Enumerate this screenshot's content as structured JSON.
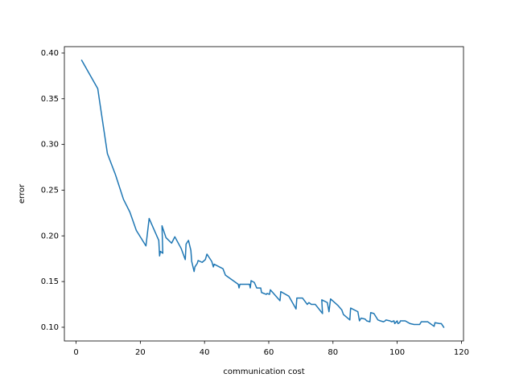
{
  "chart_data": {
    "type": "line",
    "x_label": "communication cost",
    "y_label": "error",
    "series": [
      {
        "color": "#1f77b4",
        "x": [
          1.75,
          6.75,
          7.5,
          9.75,
          12.25,
          14.75,
          16.75,
          18.75,
          21.75,
          22.75,
          25.75,
          26,
          26.25,
          27,
          26.75,
          28,
          29.75,
          30.75,
          32.75,
          34,
          34.25,
          35,
          35.75,
          36,
          36.75,
          37,
          37.75,
          38,
          39.25,
          40.25,
          40.75,
          42.25,
          42.75,
          43,
          45.75,
          46.5,
          50.5,
          50.75,
          51,
          54,
          54.25,
          54.5,
          55.5,
          56.25,
          57.5,
          57.75,
          59.25,
          59.5,
          60.25,
          60.5,
          61,
          63.5,
          63.75,
          66.25,
          68.5,
          68.75,
          70.5,
          72,
          72.5,
          73.25,
          74.5,
          76.75,
          76.5,
          78.25,
          78.75,
          79.25,
          81.5,
          82.75,
          83.25,
          85.25,
          85.5,
          87.75,
          88.25,
          88.75,
          90,
          90.5,
          91.5,
          91.75,
          92.75,
          94,
          94.75,
          95.75,
          96.25,
          96.5,
          97.75,
          98.25,
          99,
          99.25,
          100,
          100.25,
          100.75,
          101,
          102.5,
          104,
          105.25,
          107,
          107.5,
          109.5,
          111.5,
          111.75,
          113.25,
          113.75,
          114.5
        ],
        "values": [
          0.392,
          0.361,
          0.343,
          0.29,
          0.267,
          0.24,
          0.226,
          0.206,
          0.189,
          0.219,
          0.195,
          0.178,
          0.183,
          0.181,
          0.211,
          0.198,
          0.192,
          0.199,
          0.186,
          0.174,
          0.191,
          0.195,
          0.184,
          0.172,
          0.161,
          0.166,
          0.17,
          0.173,
          0.171,
          0.174,
          0.18,
          0.172,
          0.166,
          0.169,
          0.164,
          0.157,
          0.147,
          0.143,
          0.147,
          0.147,
          0.143,
          0.151,
          0.149,
          0.143,
          0.143,
          0.138,
          0.136,
          0.137,
          0.136,
          0.141,
          0.139,
          0.129,
          0.139,
          0.134,
          0.12,
          0.132,
          0.132,
          0.125,
          0.127,
          0.125,
          0.125,
          0.115,
          0.13,
          0.127,
          0.117,
          0.131,
          0.124,
          0.119,
          0.114,
          0.108,
          0.121,
          0.117,
          0.107,
          0.11,
          0.109,
          0.107,
          0.106,
          0.116,
          0.115,
          0.108,
          0.107,
          0.106,
          0.107,
          0.108,
          0.107,
          0.106,
          0.107,
          0.104,
          0.107,
          0.104,
          0.105,
          0.107,
          0.107,
          0.104,
          0.103,
          0.103,
          0.106,
          0.106,
          0.101,
          0.105,
          0.104,
          0.104,
          0.1
        ]
      }
    ],
    "xlim": [
      -3.65,
      120.65
    ],
    "xticks": [
      0,
      20,
      40,
      60,
      80,
      100,
      120
    ],
    "ylim": [
      0.085,
      0.407
    ],
    "yticks": [
      {
        "value": 0.1,
        "label": "0.10"
      },
      {
        "value": 0.15,
        "label": "0.15"
      },
      {
        "value": 0.2,
        "label": "0.20"
      },
      {
        "value": 0.25,
        "label": "0.25"
      },
      {
        "value": 0.3,
        "label": "0.30"
      },
      {
        "value": 0.35,
        "label": "0.35"
      },
      {
        "value": 0.4,
        "label": "0.40"
      }
    ],
    "grid": false
  }
}
